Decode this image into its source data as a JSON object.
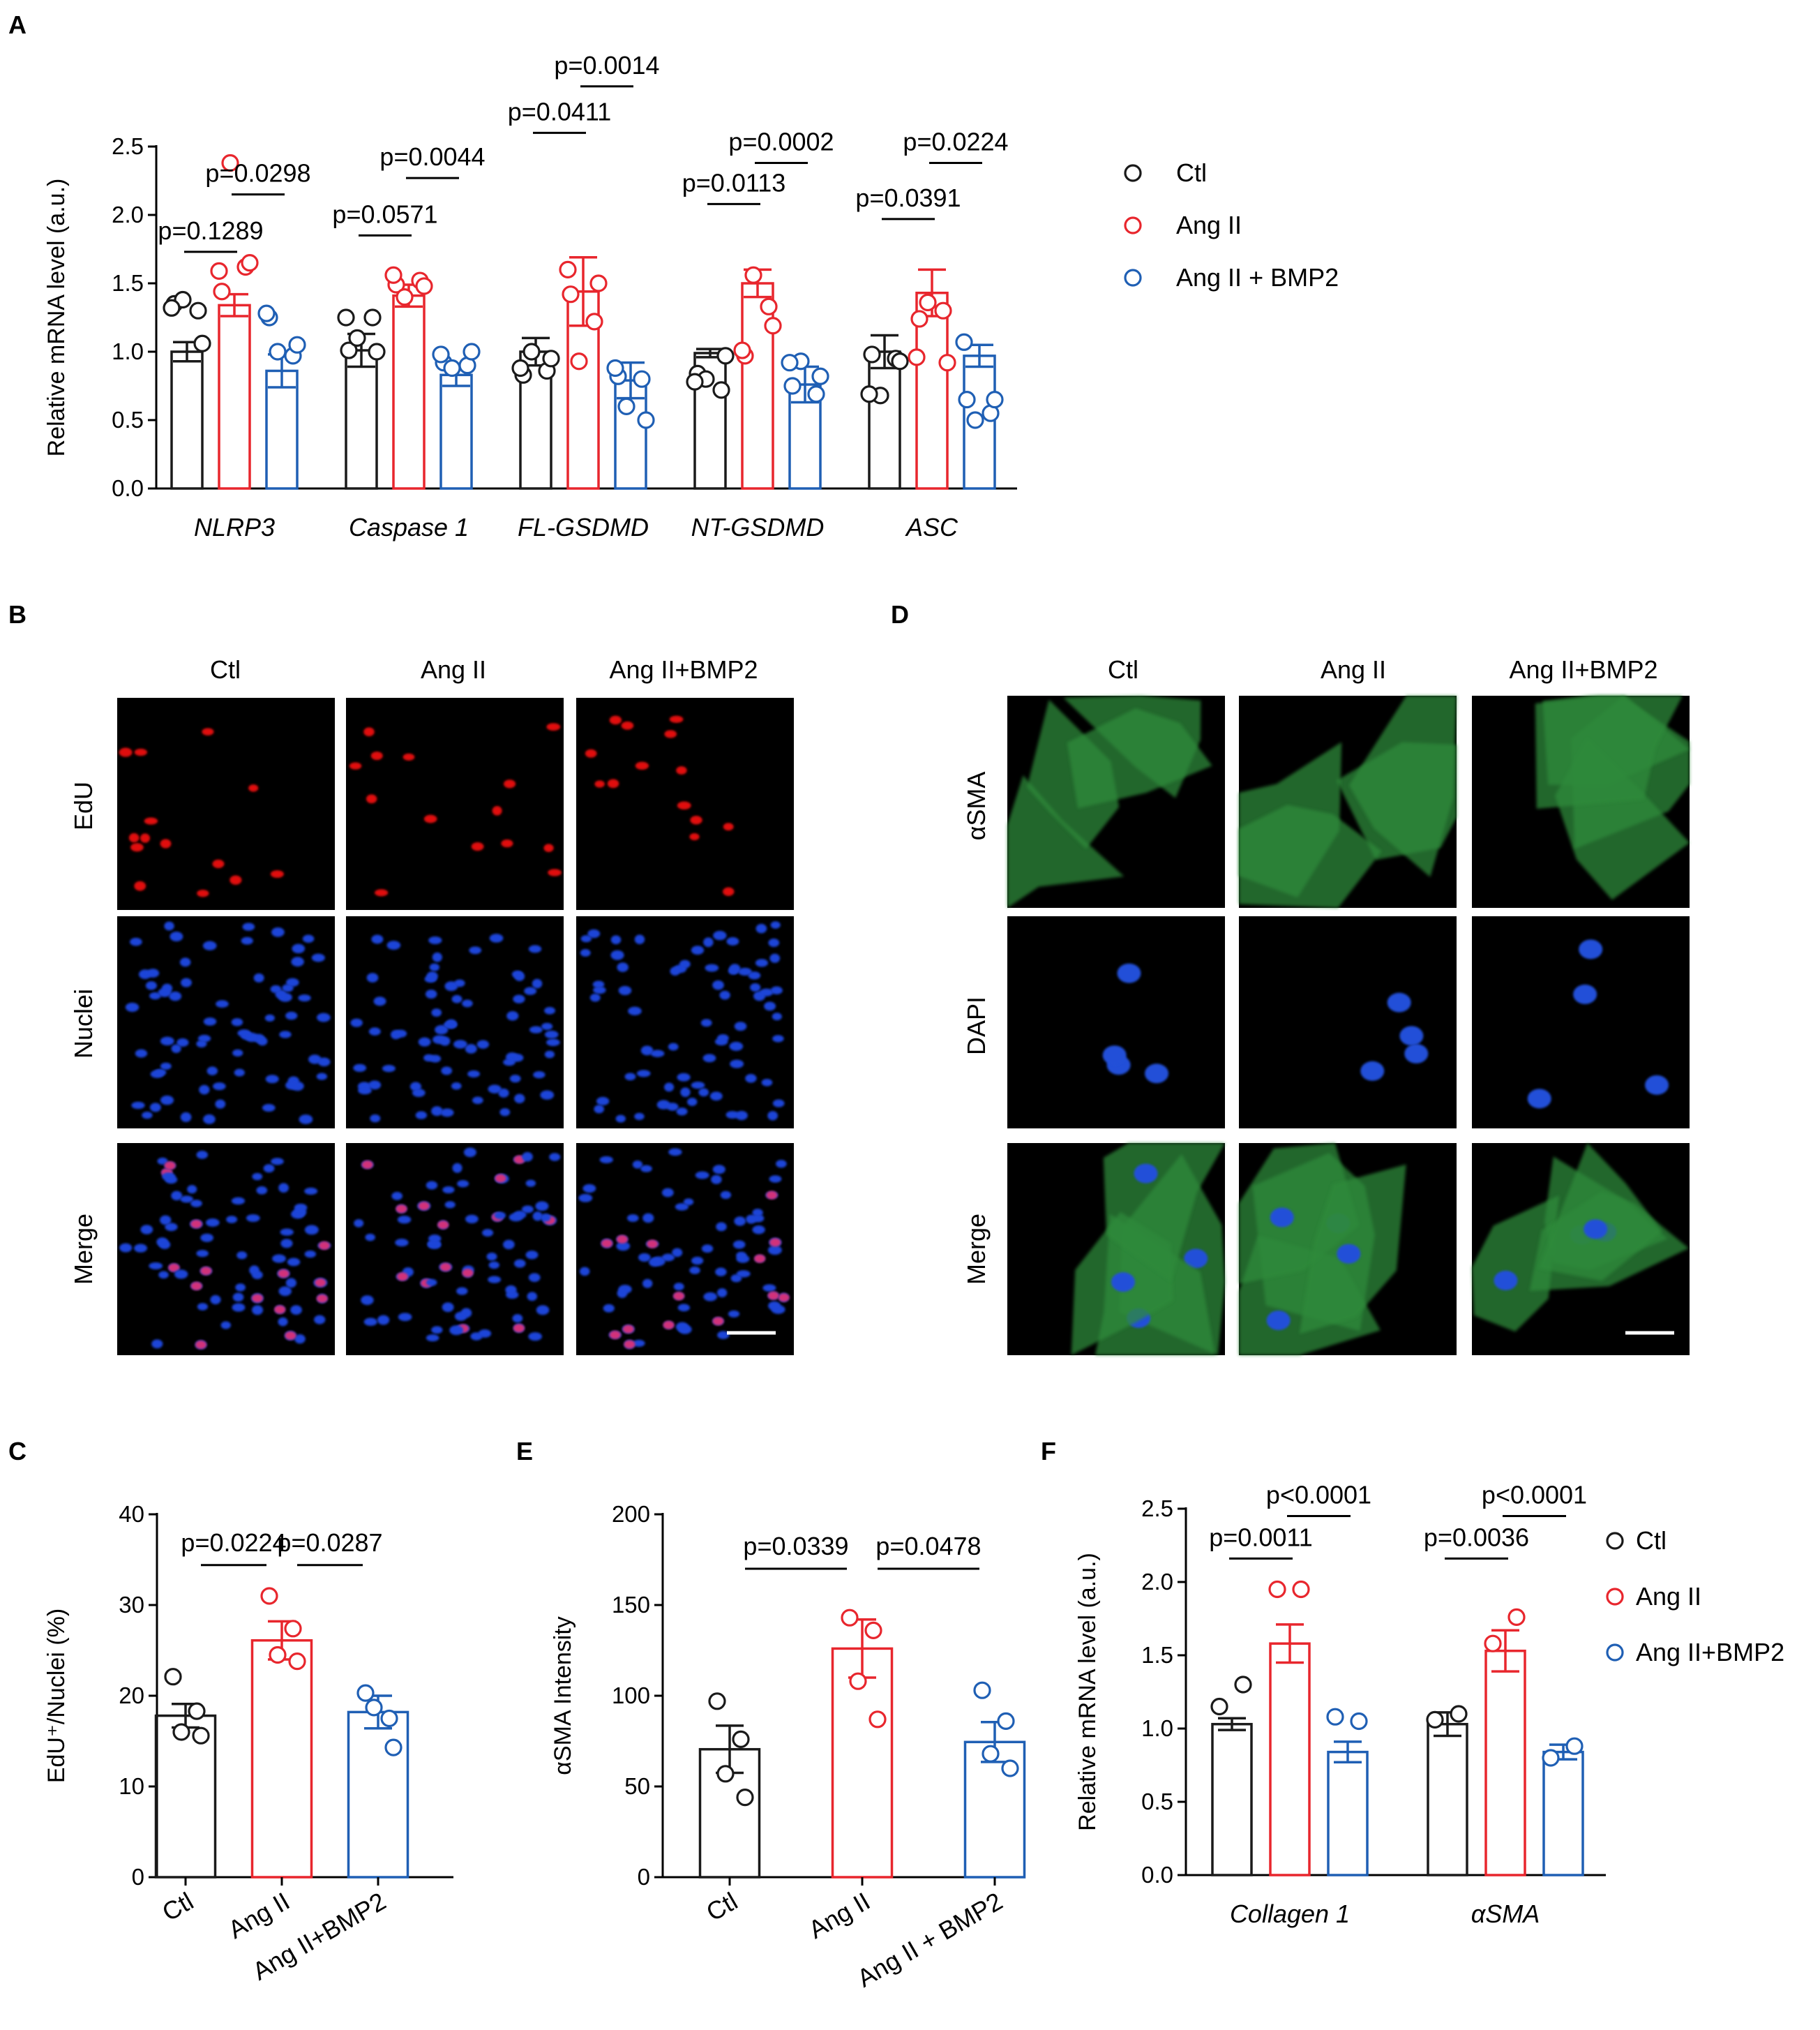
{
  "figure": {
    "labels": {
      "A": "A",
      "B": "B",
      "C": "C",
      "D": "D",
      "E": "E",
      "F": "F"
    }
  },
  "colors": {
    "Ctl": "#1a1a1a",
    "Ang II": "#e8262d",
    "BMP2": "#1f5fb4",
    "bracket": "#000000",
    "panel_bg": "#000000"
  },
  "chart_data": [
    {
      "id": "A",
      "type": "bar",
      "ylabel": "Relative mRNA level (a.u.)",
      "ylim": [
        0,
        2.5
      ],
      "yticks": [
        "0.0",
        "0.5",
        "1.0",
        "1.5",
        "2.0",
        "2.5"
      ],
      "categories": [
        "NLRP3",
        "Caspase 1",
        "FL-GSDMD",
        "NT-GSDMD",
        "ASC"
      ],
      "legend": [
        "Ctl",
        "Ang II",
        "Ang II + BMP2"
      ],
      "series": [
        {
          "name": "Ctl",
          "color": "#1a1a1a",
          "values": [
            1.0,
            1.01,
            1.0,
            0.99,
            1.0
          ],
          "sem": [
            0.07,
            0.12,
            0.1,
            0.03,
            0.12
          ],
          "points": [
            [
              1.35,
              1.01,
              0.83,
              0.84,
              0.98
            ],
            [
              1.3,
              1.25,
              0.86,
              0.72,
              0.95
            ],
            [
              1.38,
              1.1,
              1.0,
              0.8,
              0.68
            ],
            [
              1.06,
              1.0,
              0.95,
              0.97,
              0.93
            ],
            [
              1.32,
              1.25,
              0.88,
              0.78,
              0.69
            ]
          ]
        },
        {
          "name": "Ang II",
          "color": "#e8262d",
          "values": [
            1.34,
            1.41,
            1.44,
            1.5,
            1.43
          ],
          "sem": [
            0.08,
            0.08,
            0.25,
            0.1,
            0.17
          ],
          "points": [
            [
              1.44,
              1.49,
              1.42,
              0.97,
              1.24
            ],
            [
              1.62,
              1.52,
              1.22,
              1.33,
              1.3
            ],
            [
              2.38,
              1.4,
              0.93,
              1.56,
              1.36
            ],
            [
              1.65,
              1.48,
              1.5,
              1.19,
              0.92
            ],
            [
              1.59,
              1.56,
              1.6,
              1.01,
              0.96
            ]
          ]
        },
        {
          "name": "Ang II + BMP2",
          "color": "#1f5fb4",
          "values": [
            0.86,
            0.83,
            0.79,
            0.76,
            0.97
          ],
          "sem": [
            0.12,
            0.08,
            0.13,
            0.13,
            0.08
          ],
          "points": [
            [
              1.25,
              0.92,
              0.82,
              0.75,
              0.65
            ],
            [
              0.97,
              0.9,
              0.8,
              0.69,
              0.55
            ],
            [
              1.0,
              0.88,
              0.6,
              0.93,
              0.5
            ],
            [
              1.05,
              1.0,
              0.5,
              0.82,
              0.65
            ],
            [
              1.28,
              0.98,
              0.88,
              0.92,
              1.07
            ]
          ]
        }
      ],
      "pvalues": [
        {
          "cat": 0,
          "from": 0,
          "to": 1,
          "text": "p=0.1289",
          "y": 1.73
        },
        {
          "cat": 0,
          "from": 1,
          "to": 2,
          "text": "p=0.0298",
          "y": 2.15
        },
        {
          "cat": 1,
          "from": 0,
          "to": 1,
          "text": "p=0.0571",
          "y": 1.85
        },
        {
          "cat": 1,
          "from": 1,
          "to": 2,
          "text": "p=0.0044",
          "y": 2.27
        },
        {
          "cat": 2,
          "from": 0,
          "to": 1,
          "text": "p=0.0411",
          "y": 2.6
        },
        {
          "cat": 2,
          "from": 1,
          "to": 2,
          "text": "p=0.0014",
          "y": 2.94
        },
        {
          "cat": 3,
          "from": 0,
          "to": 1,
          "text": "p=0.0113",
          "y": 2.08
        },
        {
          "cat": 3,
          "from": 1,
          "to": 2,
          "text": "p=0.0002",
          "y": 2.38
        },
        {
          "cat": 4,
          "from": 0,
          "to": 1,
          "text": "p=0.0391",
          "y": 1.97
        },
        {
          "cat": 4,
          "from": 1,
          "to": 2,
          "text": "p=0.0224",
          "y": 2.38
        }
      ]
    },
    {
      "id": "C",
      "type": "bar",
      "ylabel": "EdU⁺/Nuclei (%)",
      "ylim": [
        0,
        40
      ],
      "yticks": [
        "0",
        "10",
        "20",
        "30",
        "40"
      ],
      "categories": [
        "Ctl",
        "Ang II",
        "Ang II+BMP2"
      ],
      "colors": [
        "#1a1a1a",
        "#e8262d",
        "#1f5fb4"
      ],
      "values": [
        17.8,
        26.1,
        18.2
      ],
      "sem": [
        1.3,
        2.1,
        1.8
      ],
      "points": [
        [
          22.1,
          18.3,
          16.0,
          15.6
        ],
        [
          31.0,
          27.4,
          24.5,
          23.8
        ],
        [
          20.3,
          17.5,
          18.7,
          14.3
        ]
      ],
      "pvalues": [
        {
          "from": 0,
          "to": 1,
          "text": "p=0.0224",
          "y": 34.4
        },
        {
          "from": 1,
          "to": 2,
          "text": "p=0.0287",
          "y": 34.4
        }
      ]
    },
    {
      "id": "E",
      "type": "bar",
      "ylabel": "αSMA Intensity",
      "ylim": [
        0,
        200
      ],
      "yticks": [
        "0",
        "50",
        "100",
        "150",
        "200"
      ],
      "categories": [
        "Ctl",
        "Ang II",
        "Ang II + BMP2"
      ],
      "colors": [
        "#1a1a1a",
        "#e8262d",
        "#1f5fb4"
      ],
      "values": [
        70.5,
        126.0,
        74.5
      ],
      "sem": [
        13,
        16,
        11
      ],
      "points": [
        [
          97,
          76,
          57,
          44
        ],
        [
          143,
          136,
          108,
          87
        ],
        [
          103,
          86,
          68,
          60
        ]
      ],
      "pvalues": [
        {
          "from": 0,
          "to": 1,
          "text": "p=0.0339",
          "y": 170
        },
        {
          "from": 1,
          "to": 2,
          "text": "p=0.0478",
          "y": 170
        }
      ]
    },
    {
      "id": "F",
      "type": "bar",
      "ylabel": "Relative mRNA level (a.u.)",
      "ylim": [
        0,
        2.5
      ],
      "yticks": [
        "0.0",
        "0.5",
        "1.0",
        "1.5",
        "2.0",
        "2.5"
      ],
      "categories": [
        "Collagen 1",
        "αSMA"
      ],
      "legend": [
        "Ctl",
        "Ang II",
        "Ang II+BMP2"
      ],
      "series": [
        {
          "name": "Ctl",
          "color": "#1a1a1a",
          "values": [
            1.03,
            1.03
          ],
          "sem": [
            0.04,
            0.08
          ],
          "points": [
            [
              1.15,
              1.06,
              0.99,
              1.03,
              0.98
            ],
            [
              1.3,
              1.1,
              0.97,
              0.9,
              1.0
            ]
          ]
        },
        {
          "name": "Ang II",
          "color": "#e8262d",
          "values": [
            1.58,
            1.53
          ],
          "sem": [
            0.13,
            0.14
          ],
          "points": [
            [
              1.95,
              1.58,
              1.28,
              1.65,
              1.87
            ],
            [
              1.95,
              1.76,
              1.46,
              1.3,
              1.52
            ]
          ]
        },
        {
          "name": "Ang II+BMP2",
          "color": "#1f5fb4",
          "values": [
            0.84,
            0.84
          ],
          "sem": [
            0.07,
            0.05
          ],
          "points": [
            [
              1.08,
              0.8,
              0.72,
              0.88,
              0.75
            ],
            [
              1.05,
              0.88,
              0.78,
              0.93,
              0.72
            ]
          ]
        }
      ],
      "pvalues": [
        {
          "cat": 0,
          "from": 0,
          "to": 1,
          "text": "p=0.0011",
          "y": 2.16
        },
        {
          "cat": 0,
          "from": 1,
          "to": 2,
          "text": "p<0.0001",
          "y": 2.45
        },
        {
          "cat": 1,
          "from": 0,
          "to": 1,
          "text": "p=0.0036",
          "y": 2.16
        },
        {
          "cat": 1,
          "from": 1,
          "to": 2,
          "text": "p<0.0001",
          "y": 2.45
        }
      ]
    }
  ],
  "images": {
    "B": {
      "cols": [
        "Ctl",
        "Ang II",
        "Ang II+BMP2"
      ],
      "rows": [
        "EdU",
        "Nuclei",
        "Merge"
      ]
    },
    "D": {
      "cols": [
        "Ctl",
        "Ang II",
        "Ang II+BMP2"
      ],
      "rows": [
        "αSMA",
        "DAPI",
        "Merge"
      ]
    }
  }
}
